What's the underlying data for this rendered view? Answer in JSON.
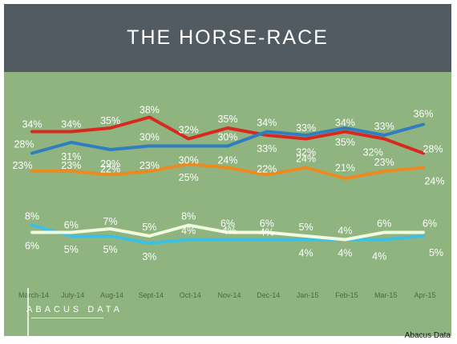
{
  "header": {
    "title": "THE HORSE-RACE"
  },
  "brand": {
    "logo_text": "ABACUS DATA"
  },
  "source_note": "Abacus Data",
  "colors": {
    "background": "#8fb47f",
    "header": "#515b61"
  },
  "chart_data": {
    "type": "line",
    "categories": [
      "March-14",
      "July-14",
      "Aug-14",
      "Sept-14",
      "Oct-14",
      "Nov-14",
      "Dec-14",
      "Jan-15",
      "Feb-15",
      "Mar-15",
      "Apr-15"
    ],
    "series": [
      {
        "color": "#d8281f",
        "values": [
          34,
          34,
          35,
          38,
          32,
          35,
          33,
          32,
          34,
          32,
          28
        ]
      },
      {
        "color": "#2f7ec0",
        "values": [
          28,
          31,
          29,
          30,
          30,
          30,
          34,
          33,
          35,
          33,
          36
        ]
      },
      {
        "color": "#ec8a1f",
        "values": [
          23,
          23,
          22,
          23,
          25,
          24,
          22,
          24,
          21,
          23,
          24
        ]
      },
      {
        "color": "#3cc0e3",
        "values": [
          8,
          5,
          5,
          3,
          4,
          4,
          4,
          4,
          4,
          4,
          5
        ]
      },
      {
        "color": "#f0fbe0",
        "values": [
          6,
          6,
          7,
          5,
          8,
          6,
          6,
          5,
          4,
          6,
          6
        ]
      }
    ],
    "data_labels": [
      [
        "34%",
        "34%",
        "35%",
        "38%",
        "32%",
        "35%",
        "33%",
        "32%",
        "34%",
        "32%",
        "28%"
      ],
      [
        "28%",
        "31%",
        "29%",
        "30%",
        "30%",
        "30%",
        "34%",
        "33%",
        "35%",
        "33%",
        "36%"
      ],
      [
        "23%",
        "23%",
        "22%",
        "23%",
        "25%",
        "24%",
        "22%",
        "24%",
        "21%",
        "23%",
        "24%"
      ],
      [
        "8%",
        "5%",
        "5%",
        "3%",
        "4%",
        "4%",
        "4%",
        "4%",
        "4%",
        "4%",
        "5%"
      ],
      [
        "6%",
        "6%",
        "7%",
        "5%",
        "8%",
        "6%",
        "6%",
        "5%",
        "4%",
        "6%",
        "6%"
      ]
    ],
    "grid": false
  }
}
